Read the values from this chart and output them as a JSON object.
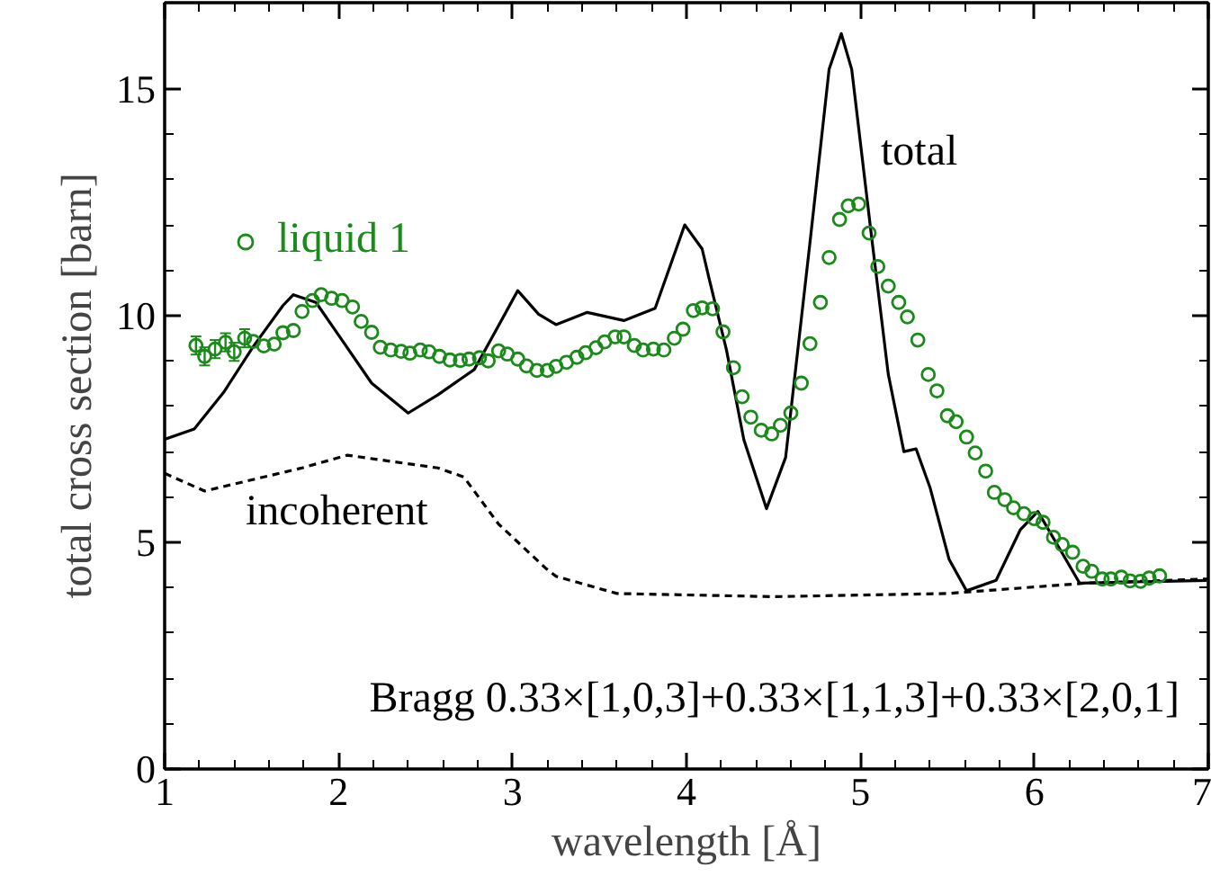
{
  "chart_data": {
    "type": "line",
    "xlabel": "wavelength [Å]",
    "ylabel": "total cross section [barn]",
    "xlim": [
      1,
      7
    ],
    "ylim": [
      0,
      16.9
    ],
    "xticks": [
      1,
      2,
      3,
      4,
      5,
      6,
      7
    ],
    "yticks": [
      0,
      5,
      10,
      15
    ],
    "grid": false,
    "legend": "top left",
    "series": [
      {
        "color": "#000000",
        "line_style": "solid",
        "x": [
          1.0,
          1.17,
          1.34,
          1.51,
          1.68,
          1.74,
          1.87,
          2.0,
          2.19,
          2.4,
          2.57,
          2.78,
          2.88,
          3.03,
          3.15,
          3.25,
          3.43,
          3.64,
          3.82,
          3.99,
          4.09,
          4.13,
          4.23,
          4.33,
          4.46,
          4.57,
          4.71,
          4.82,
          4.89,
          4.95,
          5.06,
          5.16,
          5.25,
          5.32,
          5.4,
          5.51,
          5.61,
          5.78,
          5.92,
          6.02,
          6.16,
          6.26,
          6.99
        ],
        "values": [
          7.27,
          7.5,
          8.31,
          9.32,
          10.22,
          10.46,
          10.29,
          9.57,
          8.51,
          7.85,
          8.25,
          8.81,
          9.5,
          10.55,
          10.03,
          9.8,
          10.07,
          9.89,
          10.16,
          12.0,
          11.47,
          10.82,
          9.24,
          7.26,
          5.74,
          6.87,
          11.61,
          15.43,
          16.22,
          15.43,
          11.87,
          8.71,
          7.0,
          7.06,
          6.21,
          4.62,
          3.93,
          4.16,
          5.28,
          5.68,
          4.76,
          4.1,
          4.16
        ]
      },
      {
        "color": "#000000",
        "line_style": "dashed",
        "x": [
          1.0,
          1.23,
          1.79,
          2.05,
          2.57,
          2.72,
          2.92,
          3.19,
          3.25,
          3.6,
          4.5,
          5.5,
          6.3,
          7.0
        ],
        "values": [
          6.52,
          6.13,
          6.64,
          6.92,
          6.64,
          6.44,
          5.4,
          4.43,
          4.25,
          3.87,
          3.8,
          3.87,
          4.1,
          4.19
        ]
      },
      {
        "type": "scatter",
        "name": "liquid 1",
        "color": "#1a8a1a",
        "marker": "circle",
        "x": [
          1.18,
          1.23,
          1.29,
          1.35,
          1.4,
          1.46,
          1.51,
          1.57,
          1.63,
          1.68,
          1.74,
          1.79,
          1.85,
          1.9,
          1.96,
          2.02,
          2.08,
          2.13,
          2.19,
          2.24,
          2.3,
          2.36,
          2.41,
          2.47,
          2.52,
          2.58,
          2.64,
          2.7,
          2.75,
          2.81,
          2.86,
          2.92,
          2.97,
          3.03,
          3.08,
          3.14,
          3.2,
          3.25,
          3.31,
          3.37,
          3.42,
          3.48,
          3.53,
          3.59,
          3.64,
          3.7,
          3.75,
          3.81,
          3.87,
          3.93,
          3.98,
          4.04,
          4.09,
          4.15,
          4.21,
          4.27,
          4.32,
          4.37,
          4.43,
          4.49,
          4.54,
          4.6,
          4.66,
          4.71,
          4.77,
          4.82,
          4.88,
          4.93,
          4.99,
          5.05,
          5.1,
          5.16,
          5.22,
          5.27,
          5.33,
          5.39,
          5.44,
          5.5,
          5.55,
          5.61,
          5.66,
          5.72,
          5.77,
          5.83,
          5.88,
          5.94,
          6.0,
          6.05,
          6.11,
          6.16,
          6.22,
          6.28,
          6.33,
          6.39,
          6.44,
          6.5,
          6.55,
          6.61,
          6.66,
          6.72
        ],
        "values": [
          9.34,
          9.1,
          9.26,
          9.41,
          9.2,
          9.5,
          9.43,
          9.33,
          9.37,
          9.62,
          9.67,
          10.09,
          10.33,
          10.46,
          10.38,
          10.33,
          10.19,
          9.87,
          9.63,
          9.3,
          9.24,
          9.21,
          9.17,
          9.24,
          9.2,
          9.1,
          9.02,
          9.01,
          9.04,
          9.07,
          9.0,
          9.22,
          9.15,
          9.04,
          8.89,
          8.79,
          8.79,
          8.88,
          8.97,
          9.08,
          9.18,
          9.29,
          9.42,
          9.53,
          9.53,
          9.34,
          9.24,
          9.26,
          9.24,
          9.5,
          9.7,
          10.11,
          10.17,
          10.15,
          9.64,
          8.85,
          8.21,
          7.76,
          7.47,
          7.39,
          7.58,
          7.85,
          8.51,
          9.38,
          10.29,
          11.28,
          12.12,
          12.42,
          12.46,
          11.82,
          11.08,
          10.65,
          10.29,
          9.97,
          9.46,
          8.7,
          8.34,
          7.79,
          7.66,
          7.32,
          6.97,
          6.57,
          6.1,
          5.94,
          5.76,
          5.63,
          5.52,
          5.44,
          5.11,
          4.95,
          4.78,
          4.47,
          4.36,
          4.19,
          4.19,
          4.23,
          4.15,
          4.14,
          4.21,
          4.26
        ],
        "errors": [
          0.2,
          0.2,
          0.2,
          0.2,
          0.2,
          0.2,
          null,
          null,
          null,
          null,
          null,
          null,
          null,
          null,
          null,
          null,
          null,
          null,
          null,
          null,
          null,
          null,
          null,
          null,
          null,
          null,
          null,
          null,
          null,
          null,
          null,
          null,
          null,
          null,
          null,
          null,
          null,
          null,
          null,
          null,
          null,
          null,
          null,
          null,
          null,
          null,
          null,
          null,
          null,
          null,
          null,
          null,
          null,
          null,
          null,
          null,
          null,
          null,
          null,
          null,
          null,
          null,
          null,
          null,
          null,
          null,
          null,
          null,
          null,
          null,
          null,
          null,
          null,
          null,
          null,
          null,
          null,
          null,
          null,
          null,
          null,
          null,
          null,
          null,
          null,
          null,
          null,
          null,
          null,
          null,
          null,
          null,
          null,
          null,
          null,
          null,
          null,
          null,
          null,
          null
        ]
      }
    ],
    "annotations": [
      "total",
      "incoherent",
      "Bragg  0.33×[1,0,3]+0.33×[1,1,3]+0.33×[2,0,1]"
    ]
  }
}
